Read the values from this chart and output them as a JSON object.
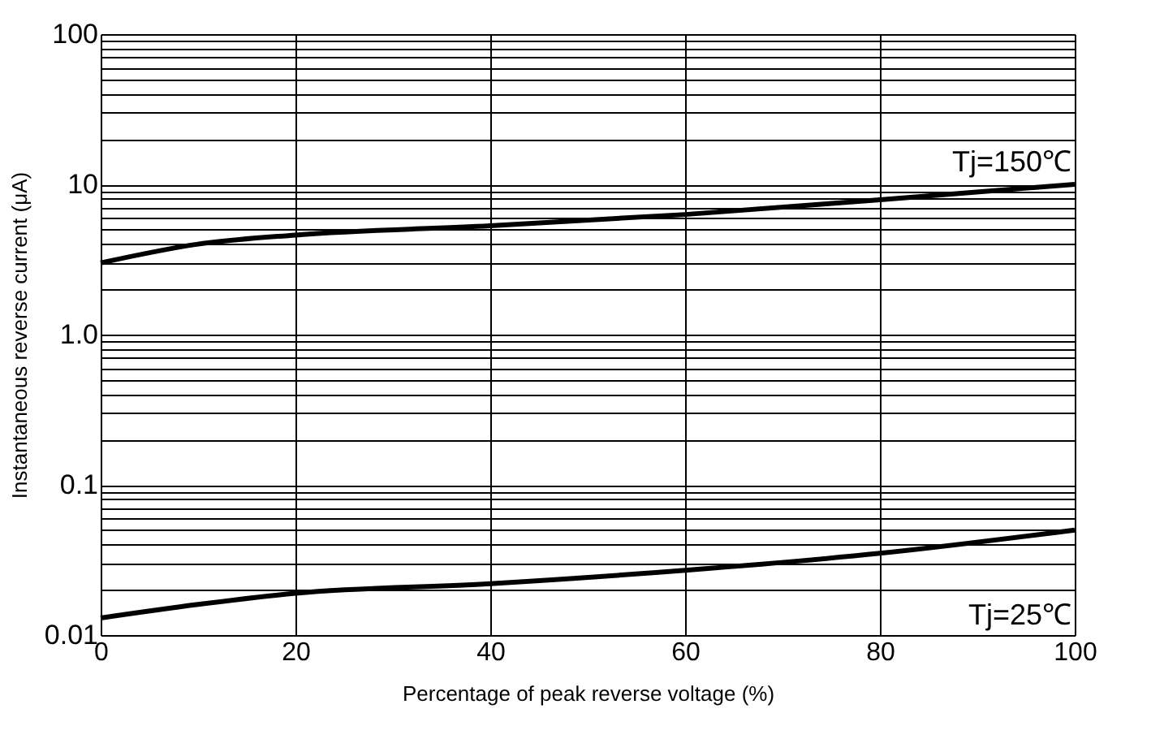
{
  "chart_data": {
    "type": "line",
    "xlabel": "Percentage of peak reverse voltage (%)",
    "ylabel": "Instantaneous reverse current (μA)",
    "log": "y",
    "grid": true,
    "marker": "none",
    "line_style": "solid",
    "xlim": [
      0,
      100
    ],
    "xticks": [
      0,
      20,
      40,
      60,
      80,
      100
    ],
    "ylim": [
      0.01,
      100
    ],
    "yticks": [
      0.01,
      {
        "value": 0.02,
        "label": null
      },
      {
        "value": 0.03,
        "label": null
      },
      {
        "value": 0.04,
        "label": null
      },
      {
        "value": 0.05,
        "label": null
      },
      {
        "value": 0.06,
        "label": null
      },
      {
        "value": 0.07,
        "label": null
      },
      {
        "value": 0.08,
        "label": null
      },
      {
        "value": 0.09,
        "label": null
      },
      0.1,
      {
        "value": 0.2,
        "label": null
      },
      {
        "value": 0.3,
        "label": null
      },
      {
        "value": 0.4,
        "label": null
      },
      {
        "value": 0.5,
        "label": null
      },
      {
        "value": 0.6,
        "label": null
      },
      {
        "value": 0.7,
        "label": null
      },
      {
        "value": 0.8,
        "label": null
      },
      {
        "value": 0.9,
        "label": null
      },
      {
        "value": 1,
        "label": "1.0"
      },
      {
        "value": 2,
        "label": null
      },
      {
        "value": 3,
        "label": null
      },
      {
        "value": 4,
        "label": null
      },
      {
        "value": 5,
        "label": null
      },
      {
        "value": 6,
        "label": null
      },
      {
        "value": 7,
        "label": null
      },
      {
        "value": 8,
        "label": null
      },
      {
        "value": 9,
        "label": null
      },
      10,
      {
        "value": 20,
        "label": null
      },
      {
        "value": 30,
        "label": null
      },
      {
        "value": 40,
        "label": null
      },
      {
        "value": 50,
        "label": null
      },
      {
        "value": 60,
        "label": null
      },
      {
        "value": 70,
        "label": null
      },
      {
        "value": 80,
        "label": null
      },
      {
        "value": 90,
        "label": null
      },
      100
    ],
    "x": [
      0,
      10,
      20,
      40,
      60,
      80,
      100
    ],
    "series": [
      {
        "name": "Tj=150℃",
        "color": "#000000",
        "values": [
          3.0,
          4.0,
          4.6,
          5.3,
          6.3,
          7.9,
          10
        ]
      },
      {
        "name": "Tj=25℃",
        "color": "#000000",
        "values": [
          0.013,
          0.016,
          0.019,
          0.022,
          0.027,
          0.035,
          0.05
        ]
      }
    ]
  }
}
